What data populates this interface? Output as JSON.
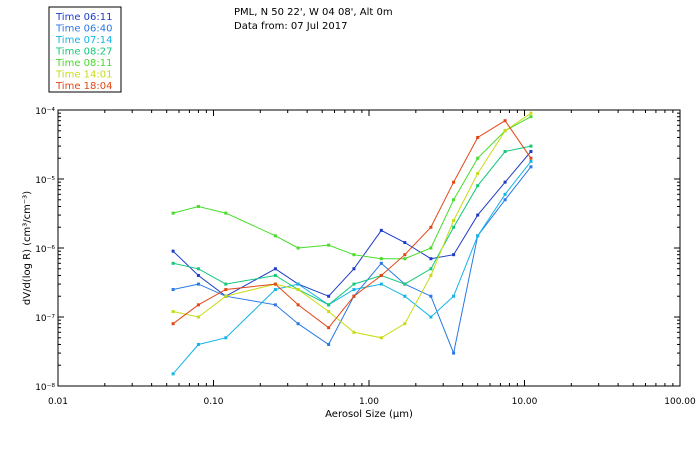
{
  "header": {
    "site": "PML, N 50 22', W 04 08', Alt 0m",
    "date": "Data from: 07 Jul 2017"
  },
  "chart_data": {
    "type": "line",
    "title": "PML, N 50 22', W 04 08', Alt 0m",
    "subtitle": "Data from: 07 Jul 2017",
    "xlabel": "Aerosol Size (µm)",
    "ylabel": "dV/d(log R) (cm³/cm⁻³)",
    "xscale": "log",
    "yscale": "log",
    "xlim": [
      0.01,
      100
    ],
    "ylim": [
      1e-08,
      0.0001
    ],
    "x_ticks": [
      0.01,
      0.1,
      1,
      10,
      100
    ],
    "x_tick_labels": [
      "0.01",
      "0.10",
      "1.00",
      "10.00",
      "100.00"
    ],
    "y_ticks": [
      1e-08,
      1e-07,
      1e-06,
      1e-05,
      0.0001
    ],
    "y_tick_labels": [
      "10⁻⁸",
      "10⁻⁷",
      "10⁻⁶",
      "10⁻⁵",
      "10⁻⁴"
    ],
    "legend_position": "top-left",
    "series": [
      {
        "name": "Time 06:11",
        "color": "#1e3cc8",
        "x": [
          0.055,
          0.08,
          0.12,
          0.25,
          0.35,
          0.55,
          0.8,
          1.2,
          1.7,
          2.5,
          3.5,
          5.0,
          7.5,
          11.0
        ],
        "y": [
          9e-07,
          4e-07,
          2e-07,
          5e-07,
          3e-07,
          2e-07,
          5e-07,
          1.8e-06,
          1.2e-06,
          7e-07,
          8e-07,
          3e-06,
          9e-06,
          2.5e-05
        ]
      },
      {
        "name": "Time 06:40",
        "color": "#2878e6",
        "x": [
          0.055,
          0.08,
          0.12,
          0.25,
          0.35,
          0.55,
          0.8,
          1.2,
          1.7,
          2.5,
          3.5,
          5.0,
          7.5,
          11.0
        ],
        "y": [
          2.5e-07,
          3e-07,
          2e-07,
          1.5e-07,
          8e-08,
          4e-08,
          2e-07,
          6e-07,
          3e-07,
          2e-07,
          3e-08,
          1.5e-06,
          5e-06,
          1.5e-05
        ]
      },
      {
        "name": "Time 07:14",
        "color": "#14b4e6",
        "x": [
          0.055,
          0.08,
          0.12,
          0.25,
          0.35,
          0.55,
          0.8,
          1.2,
          1.7,
          2.5,
          3.5,
          5.0,
          7.5,
          11.0
        ],
        "y": [
          1.5e-08,
          4e-08,
          5e-08,
          2.5e-07,
          3e-07,
          1.5e-07,
          2.5e-07,
          3e-07,
          2e-07,
          1e-07,
          2e-07,
          1.5e-06,
          6e-06,
          1.8e-05
        ]
      },
      {
        "name": "Time 08:27",
        "color": "#14c87a",
        "x": [
          0.055,
          0.08,
          0.12,
          0.25,
          0.35,
          0.55,
          0.8,
          1.2,
          1.7,
          2.5,
          3.5,
          5.0,
          7.5,
          11.0
        ],
        "y": [
          6e-07,
          5e-07,
          3e-07,
          4e-07,
          2.5e-07,
          1.5e-07,
          3e-07,
          4e-07,
          3e-07,
          5e-07,
          2e-06,
          8e-06,
          2.5e-05,
          3e-05
        ]
      },
      {
        "name": "Time 08:11",
        "color": "#46dc28",
        "x": [
          0.055,
          0.08,
          0.12,
          0.25,
          0.35,
          0.55,
          0.8,
          1.2,
          1.7,
          2.5,
          3.5,
          5.0,
          7.5,
          11.0
        ],
        "y": [
          3.2e-06,
          4e-06,
          3.2e-06,
          1.5e-06,
          1e-06,
          1.1e-06,
          8e-07,
          7e-07,
          7e-07,
          1e-06,
          5e-06,
          2e-05,
          5e-05,
          8e-05
        ]
      },
      {
        "name": "Time 14:01",
        "color": "#c8dc14",
        "x": [
          0.055,
          0.08,
          0.12,
          0.25,
          0.35,
          0.55,
          0.8,
          1.2,
          1.7,
          2.5,
          3.5,
          5.0,
          7.5,
          11.0
        ],
        "y": [
          1.2e-07,
          1e-07,
          2e-07,
          3e-07,
          2.5e-07,
          1.2e-07,
          6e-08,
          5e-08,
          8e-08,
          4e-07,
          2.5e-06,
          1.2e-05,
          5e-05,
          9e-05
        ]
      },
      {
        "name": "Time 18:04",
        "color": "#e14614",
        "x": [
          0.055,
          0.08,
          0.12,
          0.25,
          0.35,
          0.55,
          0.8,
          1.2,
          1.7,
          2.5,
          3.5,
          5.0,
          7.5,
          11.0
        ],
        "y": [
          8e-08,
          1.5e-07,
          2.5e-07,
          3e-07,
          1.5e-07,
          7e-08,
          2e-07,
          4e-07,
          8e-07,
          2e-06,
          9e-06,
          4e-05,
          7e-05,
          2e-05
        ]
      }
    ]
  }
}
